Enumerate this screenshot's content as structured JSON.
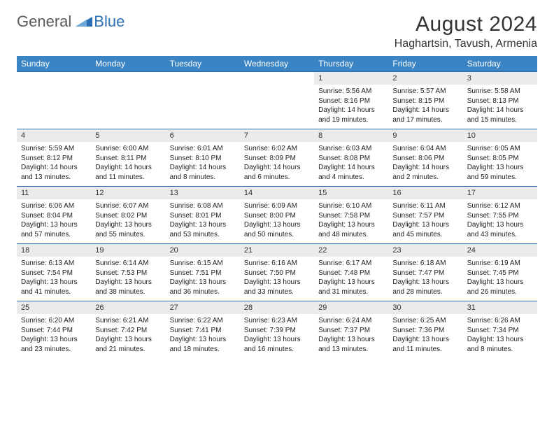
{
  "brand": {
    "word1": "General",
    "word2": "Blue"
  },
  "title": "August 2024",
  "location": "Haghartsin, Tavush, Armenia",
  "colors": {
    "header_bg": "#3b84c4",
    "header_border": "#2c6fb5",
    "daynum_bg": "#ebebeb",
    "text": "#222222",
    "logo_gray": "#5a5a5a",
    "logo_blue": "#2c6fb5"
  },
  "weekdays": [
    "Sunday",
    "Monday",
    "Tuesday",
    "Wednesday",
    "Thursday",
    "Friday",
    "Saturday"
  ],
  "weeks": [
    [
      null,
      null,
      null,
      null,
      {
        "n": "1",
        "sr": "5:56 AM",
        "ss": "8:16 PM",
        "dl": "14 hours and 19 minutes."
      },
      {
        "n": "2",
        "sr": "5:57 AM",
        "ss": "8:15 PM",
        "dl": "14 hours and 17 minutes."
      },
      {
        "n": "3",
        "sr": "5:58 AM",
        "ss": "8:13 PM",
        "dl": "14 hours and 15 minutes."
      }
    ],
    [
      {
        "n": "4",
        "sr": "5:59 AM",
        "ss": "8:12 PM",
        "dl": "14 hours and 13 minutes."
      },
      {
        "n": "5",
        "sr": "6:00 AM",
        "ss": "8:11 PM",
        "dl": "14 hours and 11 minutes."
      },
      {
        "n": "6",
        "sr": "6:01 AM",
        "ss": "8:10 PM",
        "dl": "14 hours and 8 minutes."
      },
      {
        "n": "7",
        "sr": "6:02 AM",
        "ss": "8:09 PM",
        "dl": "14 hours and 6 minutes."
      },
      {
        "n": "8",
        "sr": "6:03 AM",
        "ss": "8:08 PM",
        "dl": "14 hours and 4 minutes."
      },
      {
        "n": "9",
        "sr": "6:04 AM",
        "ss": "8:06 PM",
        "dl": "14 hours and 2 minutes."
      },
      {
        "n": "10",
        "sr": "6:05 AM",
        "ss": "8:05 PM",
        "dl": "13 hours and 59 minutes."
      }
    ],
    [
      {
        "n": "11",
        "sr": "6:06 AM",
        "ss": "8:04 PM",
        "dl": "13 hours and 57 minutes."
      },
      {
        "n": "12",
        "sr": "6:07 AM",
        "ss": "8:02 PM",
        "dl": "13 hours and 55 minutes."
      },
      {
        "n": "13",
        "sr": "6:08 AM",
        "ss": "8:01 PM",
        "dl": "13 hours and 53 minutes."
      },
      {
        "n": "14",
        "sr": "6:09 AM",
        "ss": "8:00 PM",
        "dl": "13 hours and 50 minutes."
      },
      {
        "n": "15",
        "sr": "6:10 AM",
        "ss": "7:58 PM",
        "dl": "13 hours and 48 minutes."
      },
      {
        "n": "16",
        "sr": "6:11 AM",
        "ss": "7:57 PM",
        "dl": "13 hours and 45 minutes."
      },
      {
        "n": "17",
        "sr": "6:12 AM",
        "ss": "7:55 PM",
        "dl": "13 hours and 43 minutes."
      }
    ],
    [
      {
        "n": "18",
        "sr": "6:13 AM",
        "ss": "7:54 PM",
        "dl": "13 hours and 41 minutes."
      },
      {
        "n": "19",
        "sr": "6:14 AM",
        "ss": "7:53 PM",
        "dl": "13 hours and 38 minutes."
      },
      {
        "n": "20",
        "sr": "6:15 AM",
        "ss": "7:51 PM",
        "dl": "13 hours and 36 minutes."
      },
      {
        "n": "21",
        "sr": "6:16 AM",
        "ss": "7:50 PM",
        "dl": "13 hours and 33 minutes."
      },
      {
        "n": "22",
        "sr": "6:17 AM",
        "ss": "7:48 PM",
        "dl": "13 hours and 31 minutes."
      },
      {
        "n": "23",
        "sr": "6:18 AM",
        "ss": "7:47 PM",
        "dl": "13 hours and 28 minutes."
      },
      {
        "n": "24",
        "sr": "6:19 AM",
        "ss": "7:45 PM",
        "dl": "13 hours and 26 minutes."
      }
    ],
    [
      {
        "n": "25",
        "sr": "6:20 AM",
        "ss": "7:44 PM",
        "dl": "13 hours and 23 minutes."
      },
      {
        "n": "26",
        "sr": "6:21 AM",
        "ss": "7:42 PM",
        "dl": "13 hours and 21 minutes."
      },
      {
        "n": "27",
        "sr": "6:22 AM",
        "ss": "7:41 PM",
        "dl": "13 hours and 18 minutes."
      },
      {
        "n": "28",
        "sr": "6:23 AM",
        "ss": "7:39 PM",
        "dl": "13 hours and 16 minutes."
      },
      {
        "n": "29",
        "sr": "6:24 AM",
        "ss": "7:37 PM",
        "dl": "13 hours and 13 minutes."
      },
      {
        "n": "30",
        "sr": "6:25 AM",
        "ss": "7:36 PM",
        "dl": "13 hours and 11 minutes."
      },
      {
        "n": "31",
        "sr": "6:26 AM",
        "ss": "7:34 PM",
        "dl": "13 hours and 8 minutes."
      }
    ]
  ],
  "labels": {
    "sunrise": "Sunrise:",
    "sunset": "Sunset:",
    "daylight": "Daylight:"
  }
}
